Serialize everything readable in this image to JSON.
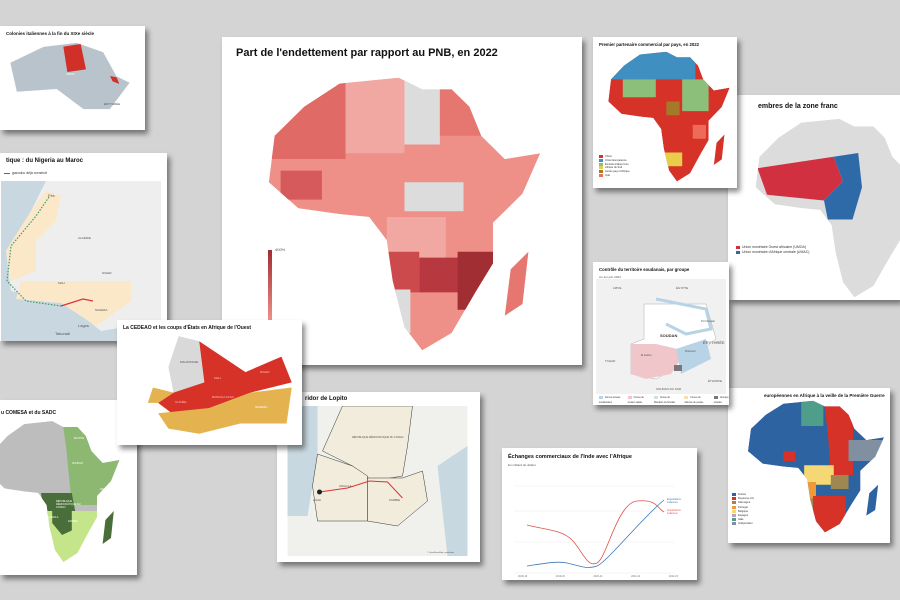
{
  "cards": {
    "italian": {
      "title": "Colonies italiennes à la fin du XIXe siècle",
      "labels": [
        "LIBYE",
        "ÉRYTHRÉE"
      ]
    },
    "pipeline": {
      "title": "tique : du Nigeria au Maroc",
      "legend": "gazoduc déjà construit",
      "labels": [
        "Fès",
        "Lagos",
        "Takoradi",
        "NIGERIA",
        "MALI",
        "NIGER",
        "ALGÉRIE"
      ]
    },
    "debt": {
      "title": "Part de l'endettement par rapport au PNB, en 2022",
      "scale_max": "400%"
    },
    "partner": {
      "title": "Premier partenaire commercial par pays, en 2022",
      "legend": [
        {
          "label": "Chine",
          "color": "#d63228"
        },
        {
          "label": "Union Européenne",
          "color": "#3f8fc0"
        },
        {
          "label": "Émirats Arabes Unis",
          "color": "#8cc07a"
        },
        {
          "label": "Afrique du Sud",
          "color": "#e8cc4a"
        },
        {
          "label": "Autres pays d'Afrique",
          "color": "#a27a2a"
        },
        {
          "label": "Inde",
          "color": "#ee6b5a"
        }
      ]
    },
    "franc": {
      "title": "embres de la zone franc",
      "legend": [
        {
          "label": "Union monétaire Ouest africaine (UMOA)",
          "color": "#d03040"
        },
        {
          "label": "Union monétaire d'Afrique centrale (UMAC)",
          "color": "#2f6aa8"
        }
      ]
    },
    "sudan": {
      "title": "Contrôle du territoire soudanais, par groupe",
      "subtitle": "Au 1er juin 2024",
      "labels": [
        "LIBYE",
        "ÉGYPTE",
        "SOUDAN",
        "TCHAD",
        "ÉRYTHRÉE",
        "ÉTHIOPIE",
        "SOUDAN DU SUD",
        "Port-Soudan",
        "Khartoum",
        "El Fasher"
      ],
      "legend": [
        {
          "label": "Forces armées soudanaises",
          "color": "#b9d3e6"
        },
        {
          "label": "Forces de soutien rapide",
          "color": "#f0c6ca"
        },
        {
          "label": "Armée de libération du Soudan",
          "color": "#cfe5dc"
        },
        {
          "label": "Forces de défense du peuple",
          "color": "#f6dfb0"
        },
        {
          "label": "Groupes rebelles",
          "color": "#777777"
        }
      ]
    },
    "cedeao": {
      "title": "La CEDEAO et les coups d'États en Afrique de l'Ouest",
      "labels": [
        "MALI",
        "NIGER",
        "GUINÉE",
        "BURKINA FASO",
        "NIGERIA",
        "MAURITANIE"
      ]
    },
    "comesa": {
      "title": "u COMESA et du SADC",
      "labels": [
        "RÉPUBLIQUE DÉMOCRATIQUE DU CONGO",
        "ZAMBIE",
        "ANGOLA",
        "KENYA",
        "ÉGYPTE",
        "SOUDAN"
      ]
    },
    "lobito": {
      "title": "ridor de Lopito",
      "labels": [
        "Lobito",
        "ANGOLA",
        "ZAMBIE",
        "RÉPUBLIQUE DÉMOCRATIQUE DU CONGO"
      ],
      "credit": "© OpenStreetMap contributors"
    },
    "india": {
      "title": "Échanges commerciaux de l'Inde avec l'Afrique",
      "subtitle": "En milliard de dollars",
      "x_ticks": [
        "2018-19",
        "2019-20",
        "2020-21",
        "2021-22",
        "2022-23"
      ],
      "series": [
        {
          "name": "Exportations indiennes",
          "color": "#3f78b5"
        },
        {
          "name": "Importations indiennes",
          "color": "#e0524a"
        }
      ]
    },
    "europe": {
      "title": "européennes en Afrique à la veille de la Première Guerre",
      "legend": [
        {
          "label": "France",
          "color": "#2d63a0"
        },
        {
          "label": "Royaume-Uni",
          "color": "#d63228"
        },
        {
          "label": "Allemagne",
          "color": "#a08650"
        },
        {
          "label": "Portugal",
          "color": "#ee9a3a"
        },
        {
          "label": "Belgique",
          "color": "#f5d873"
        },
        {
          "label": "Espagne",
          "color": "#c79ac6"
        },
        {
          "label": "Italie",
          "color": "#4e9e8a"
        },
        {
          "label": "Indépendant",
          "color": "#8090a0"
        }
      ]
    }
  }
}
